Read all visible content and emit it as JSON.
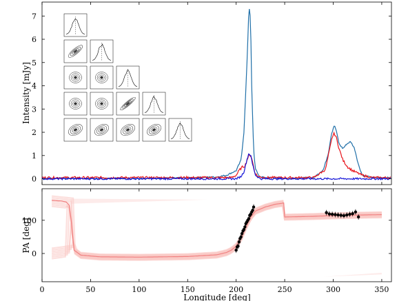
{
  "chart_data": [
    {
      "type": "line",
      "panel": "top",
      "ylabel": "Intensity [mJy]",
      "xlim": [
        0,
        360
      ],
      "ylim": [
        -0.25,
        7.6
      ],
      "yticks": [
        0,
        1,
        2,
        3,
        4,
        5,
        6,
        7
      ],
      "series": [
        {
          "color": "#1f6fa8",
          "x": [
            0,
            50,
            100,
            150,
            180,
            190,
            200,
            205,
            208,
            211,
            213,
            214,
            215,
            216,
            218,
            220,
            224,
            230,
            250,
            280,
            290,
            295,
            298,
            301,
            303,
            306,
            310,
            314,
            318,
            322,
            326,
            330,
            340,
            360
          ],
          "y": [
            0.02,
            0.02,
            0.02,
            0.04,
            0.08,
            0.15,
            0.35,
            0.8,
            2.0,
            4.8,
            7.2,
            7.4,
            6.4,
            4.0,
            1.2,
            0.4,
            0.1,
            0.05,
            0.02,
            0.05,
            0.4,
            1.1,
            1.9,
            2.3,
            2.1,
            1.5,
            1.3,
            1.5,
            1.6,
            1.3,
            0.6,
            0.15,
            0.05,
            0.05
          ]
        },
        {
          "color": "#e8141b",
          "x": [
            0,
            100,
            195,
            200,
            203,
            206,
            209,
            212,
            214,
            216,
            219,
            222,
            230,
            280,
            292,
            296,
            299,
            301,
            303,
            306,
            310,
            315,
            320,
            325,
            330,
            340,
            360
          ],
          "y": [
            0.05,
            0.05,
            0.05,
            0.15,
            0.35,
            0.5,
            0.55,
            0.9,
            1.05,
            0.9,
            0.3,
            0.1,
            0.05,
            0.05,
            0.4,
            1.2,
            1.8,
            1.95,
            1.8,
            1.3,
            0.8,
            0.5,
            0.35,
            0.25,
            0.15,
            0.05,
            0.05
          ]
        },
        {
          "color": "#1414d8",
          "x": [
            0,
            200,
            205,
            208,
            211,
            213,
            215,
            217,
            220,
            225,
            360
          ],
          "y": [
            0,
            0,
            0.1,
            0.3,
            0.8,
            1.1,
            1.0,
            0.6,
            0.15,
            0.0,
            0.0
          ]
        }
      ]
    },
    {
      "type": "scatter",
      "panel": "bottom",
      "xlabel": "Longitude [deg]",
      "ylabel": "PA [deg]",
      "xlim": [
        0,
        360
      ],
      "ylim": [
        -85,
        195
      ],
      "xticks": [
        0,
        50,
        100,
        150,
        200,
        250,
        300,
        350
      ],
      "yticks": [
        0,
        100
      ],
      "model_color": "#f08080",
      "band_color": "#f9c6c3",
      "model_curve": {
        "x": [
          10,
          20,
          25,
          28,
          30,
          33,
          40,
          60,
          100,
          150,
          180,
          190,
          195,
          200,
          205,
          210,
          215,
          220,
          230,
          240,
          249,
          250,
          251,
          280,
          300,
          330,
          350
        ],
        "y": [
          160,
          158,
          155,
          145,
          100,
          10,
          -5,
          -10,
          -11,
          -9,
          -4,
          3,
          10,
          22,
          45,
          80,
          110,
          128,
          140,
          148,
          152,
          110,
          110,
          112,
          114,
          116,
          117
        ]
      },
      "points": {
        "x": [
          200,
          201,
          202,
          203,
          204,
          205,
          206,
          207,
          208,
          209,
          210,
          211,
          212,
          213,
          214,
          215,
          216,
          217,
          218,
          293,
          296,
          299,
          302,
          305,
          308,
          311,
          314,
          317,
          320,
          323,
          326
        ],
        "y": [
          10,
          20,
          22,
          35,
          45,
          50,
          60,
          68,
          72,
          80,
          90,
          95,
          100,
          105,
          115,
          118,
          125,
          130,
          140,
          123,
          119,
          118,
          117,
          116,
          115,
          114,
          116,
          118,
          120,
          125,
          110
        ]
      }
    }
  ]
}
